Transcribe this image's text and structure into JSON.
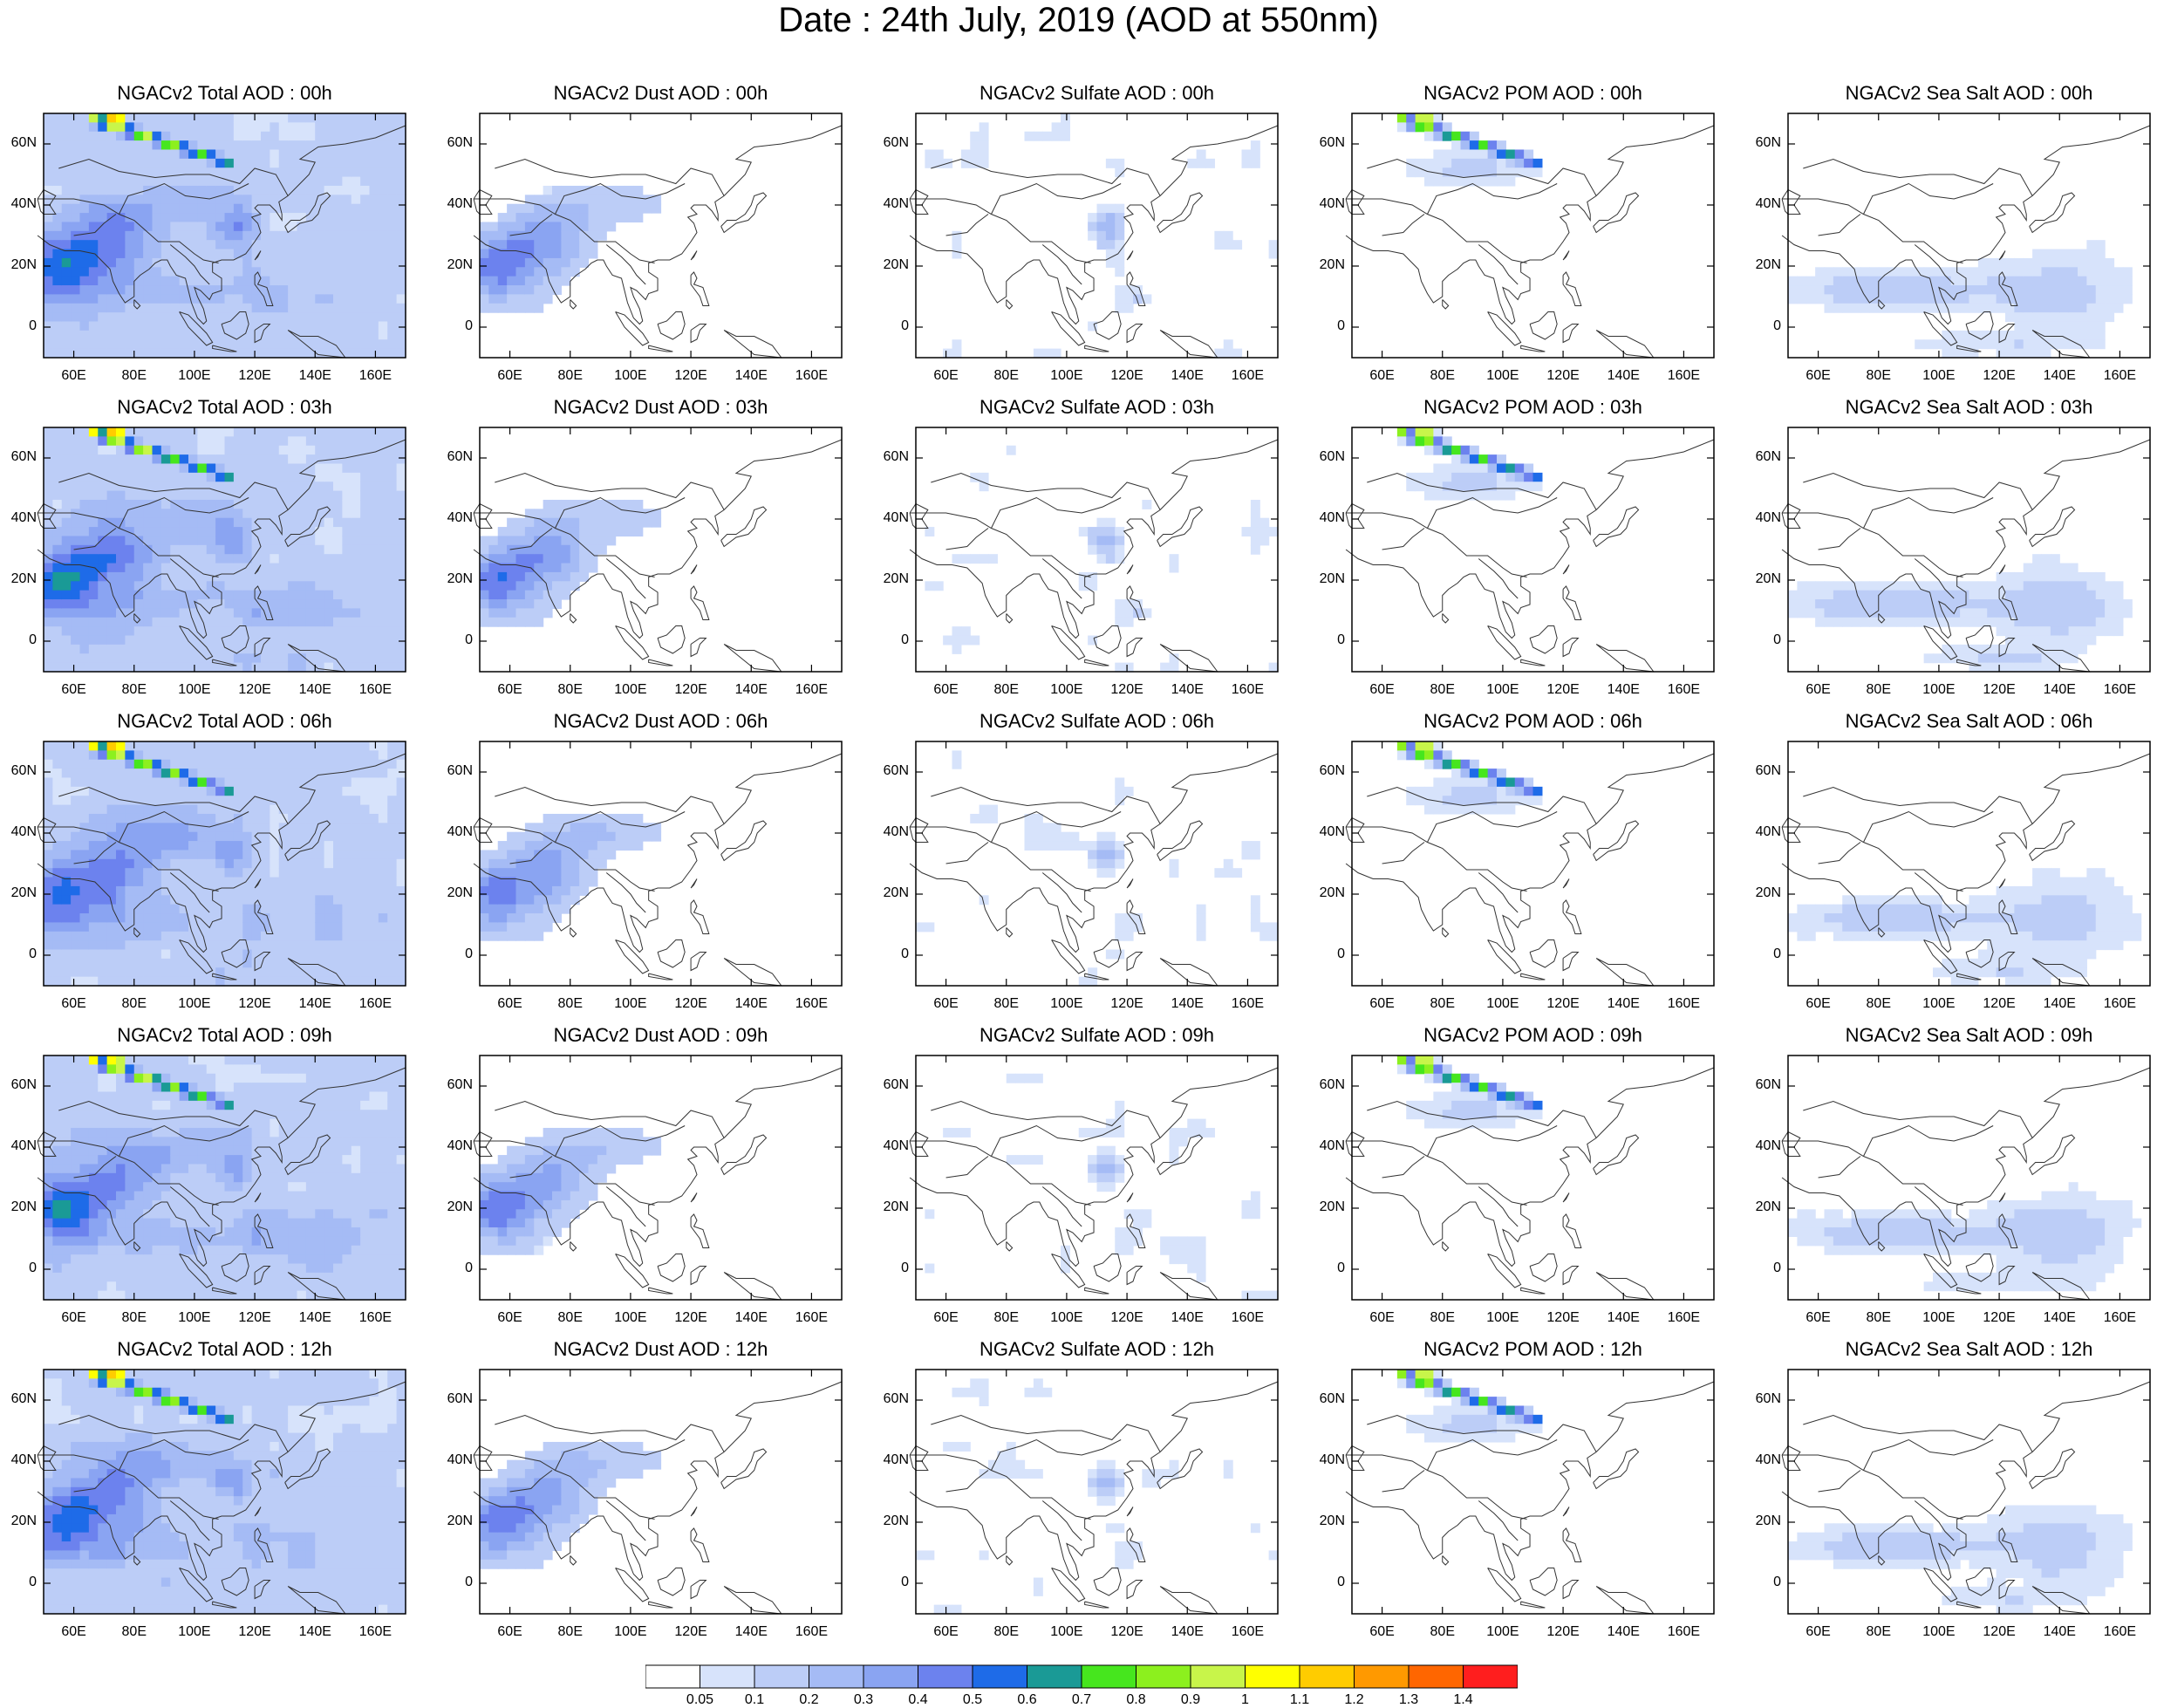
{
  "title": "Date : 24th July, 2019 (AOD at 550nm)",
  "panels": [
    [
      "NGACv2 Total AOD : 00h",
      "NGACv2 Dust AOD : 00h",
      "NGACv2 Sulfate AOD : 00h",
      "NGACv2 POM AOD : 00h",
      "NGACv2 Sea Salt AOD : 00h"
    ],
    [
      "NGACv2 Total AOD : 03h",
      "NGACv2 Dust AOD : 03h",
      "NGACv2 Sulfate AOD : 03h",
      "NGACv2 POM AOD : 03h",
      "NGACv2 Sea Salt AOD : 03h"
    ],
    [
      "NGACv2 Total AOD : 06h",
      "NGACv2 Dust AOD : 06h",
      "NGACv2 Sulfate AOD : 06h",
      "NGACv2 POM AOD : 06h",
      "NGACv2 Sea Salt AOD : 06h"
    ],
    [
      "NGACv2 Total AOD : 09h",
      "NGACv2 Dust AOD : 09h",
      "NGACv2 Sulfate AOD : 09h",
      "NGACv2 POM AOD : 09h",
      "NGACv2 Sea Salt  AOD : 09h"
    ],
    [
      "NGACv2 Total AOD  : 12h",
      "NGACv2 Dust AOD : 12h",
      "NGACv2 Sulfate AOD : 12h",
      "NGACv2 POM  AOD : 12h",
      "NGACv2 Sea Salt  AOD : 12h"
    ]
  ],
  "lon_ticks": [
    "60E",
    "80E",
    "100E",
    "120E",
    "140E",
    "160E"
  ],
  "lat_ticks": [
    "60N",
    "40N",
    "20N",
    "0"
  ],
  "colorbar": {
    "labels": [
      "0.05",
      "0.1",
      "0.2",
      "0.3",
      "0.4",
      "0.5",
      "0.6",
      "0.7",
      "0.8",
      "0.9",
      "1",
      "1.1",
      "1.2",
      "1.3",
      "1.4"
    ],
    "colors": [
      "#ffffff",
      "#d7e3fb",
      "#bccdf7",
      "#a5bbf5",
      "#8aa4f2",
      "#6c82ee",
      "#1e6be8",
      "#1a9a96",
      "#46e61e",
      "#8cf01e",
      "#c8f54a",
      "#ffff00",
      "#ffcc00",
      "#ff9900",
      "#ff6600",
      "#ff1e1e"
    ]
  }
}
